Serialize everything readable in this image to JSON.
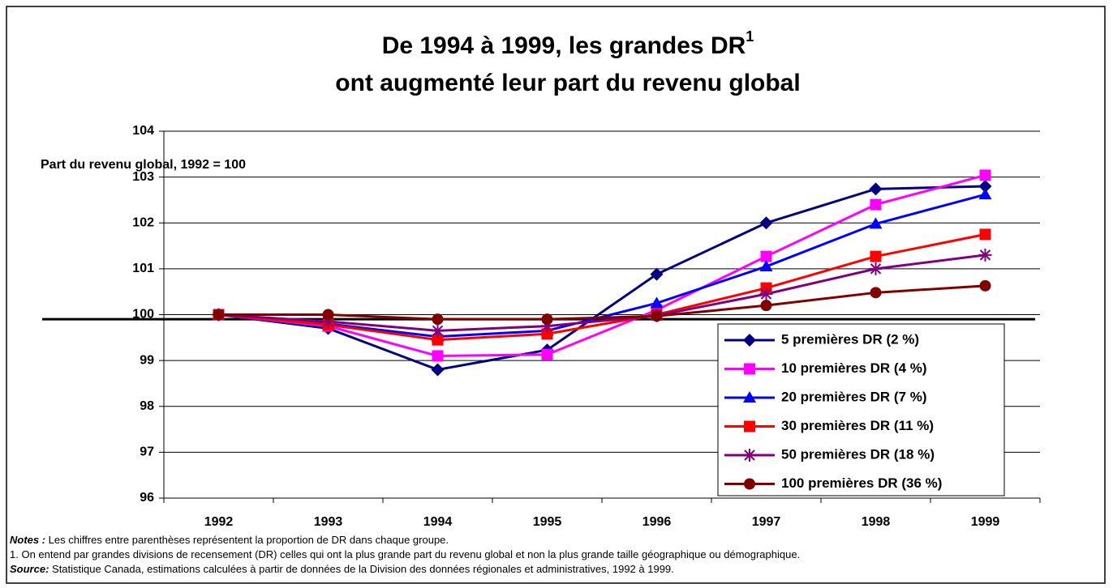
{
  "chart_data": {
    "type": "line",
    "title": "De 1994 à 1999, les grandes DR",
    "title_sup": "1",
    "title_line2": "ont augmenté leur part du revenu global",
    "ylabel": "Part du revenu global, 1992 = 100",
    "categories": [
      "1992",
      "1993",
      "1994",
      "1995",
      "1996",
      "1997",
      "1998",
      "1999"
    ],
    "ylim": [
      96,
      104
    ],
    "yticks": [
      96,
      97,
      98,
      99,
      100,
      101,
      102,
      103,
      104
    ],
    "grid": true,
    "reference_line": 99.9,
    "legend": "bottom-right",
    "series": [
      {
        "name": "5 premières DR (2 %)",
        "color": "#000080",
        "marker": "diamond",
        "values": [
          100,
          99.7,
          98.8,
          99.23,
          100.88,
          102.0,
          102.74,
          102.8
        ]
      },
      {
        "name": "10 premières DR (4 %)",
        "color": "#ff00ff",
        "marker": "square",
        "values": [
          100,
          99.75,
          99.1,
          99.13,
          100.1,
          101.27,
          102.4,
          103.04
        ]
      },
      {
        "name": "20 premières DR (7 %)",
        "color": "#0000ff",
        "marker": "triangle",
        "values": [
          100,
          99.8,
          99.52,
          99.65,
          100.25,
          101.05,
          101.98,
          102.62
        ]
      },
      {
        "name": "30 premières DR (11 %)",
        "color": "#ff0000",
        "marker": "square",
        "values": [
          100,
          99.78,
          99.45,
          99.58,
          100.0,
          100.58,
          101.27,
          101.75
        ]
      },
      {
        "name": "50 premières DR (18 %)",
        "color": "#800080",
        "marker": "asterisk",
        "values": [
          100,
          99.85,
          99.65,
          99.75,
          99.98,
          100.45,
          101.0,
          101.3
        ]
      },
      {
        "name": "100 premières DR (36 %)",
        "color": "#800000",
        "marker": "circle",
        "values": [
          100,
          100.0,
          99.9,
          99.9,
          99.97,
          100.2,
          100.48,
          100.63
        ]
      }
    ]
  },
  "notes": [
    {
      "label": "Notes :",
      "text": " Les chiffres entre parenthèses représentent la proportion de DR dans chaque groupe."
    },
    {
      "text": "1. On entend par grandes divisions de recensement (DR) celles qui ont la plus grande part du revenu global et non la plus grande taille géographique ou démographique."
    },
    {
      "label": "Source:",
      "text": " Statistique Canada, estimations calculées à partir de données de la Division des données régionales et administratives, 1992 à 1999."
    }
  ]
}
